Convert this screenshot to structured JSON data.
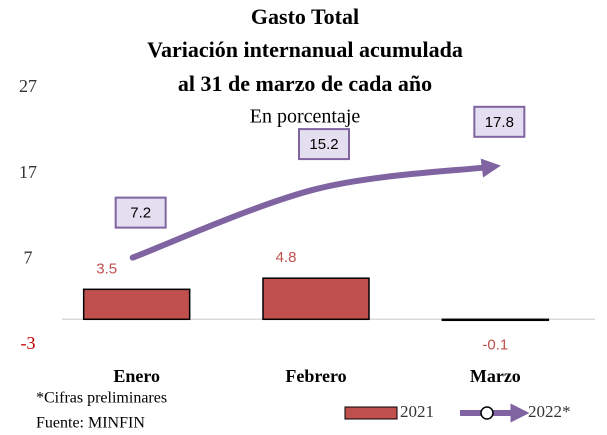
{
  "chart_data": {
    "type": "bar_line",
    "title": "Gasto Total",
    "subtitle_lines": [
      "Variación internanual acumulada",
      "al 31 de marzo de cada año"
    ],
    "subtitle": "En porcentaje",
    "categories": [
      "Enero",
      "Febrero",
      "Marzo"
    ],
    "series": [
      {
        "name": "2021",
        "type": "bar",
        "color": "#c0504d",
        "values": [
          3.5,
          4.8,
          -0.1
        ]
      },
      {
        "name": "2022*",
        "type": "line",
        "color": "#8064a2",
        "values": [
          7.2,
          15.2,
          17.8
        ]
      }
    ],
    "ylim": [
      -3,
      27
    ],
    "yticks": [
      -3,
      7,
      17,
      27
    ],
    "grid": false,
    "legend": "bottom-right",
    "notes": [
      "*Cifras preliminares",
      "Fuente: MINFIN"
    ]
  }
}
